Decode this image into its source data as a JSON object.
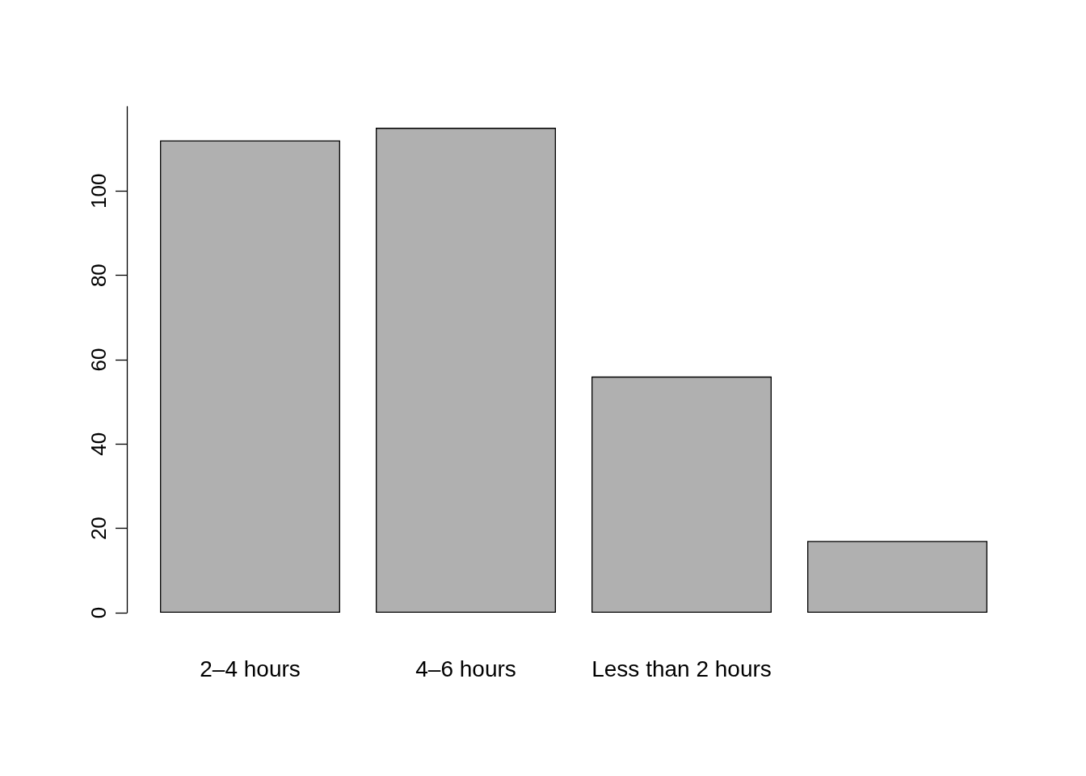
{
  "chart_data": {
    "type": "bar",
    "categories": [
      "2–4 hours",
      "4–6 hours",
      "Less than 2 hours",
      null
    ],
    "values": [
      112,
      115,
      56,
      17
    ],
    "color": "#b0b0b0",
    "ylim": [
      0,
      120
    ],
    "yticks": [
      0,
      20,
      40,
      60,
      80,
      100
    ],
    "grid": false
  }
}
